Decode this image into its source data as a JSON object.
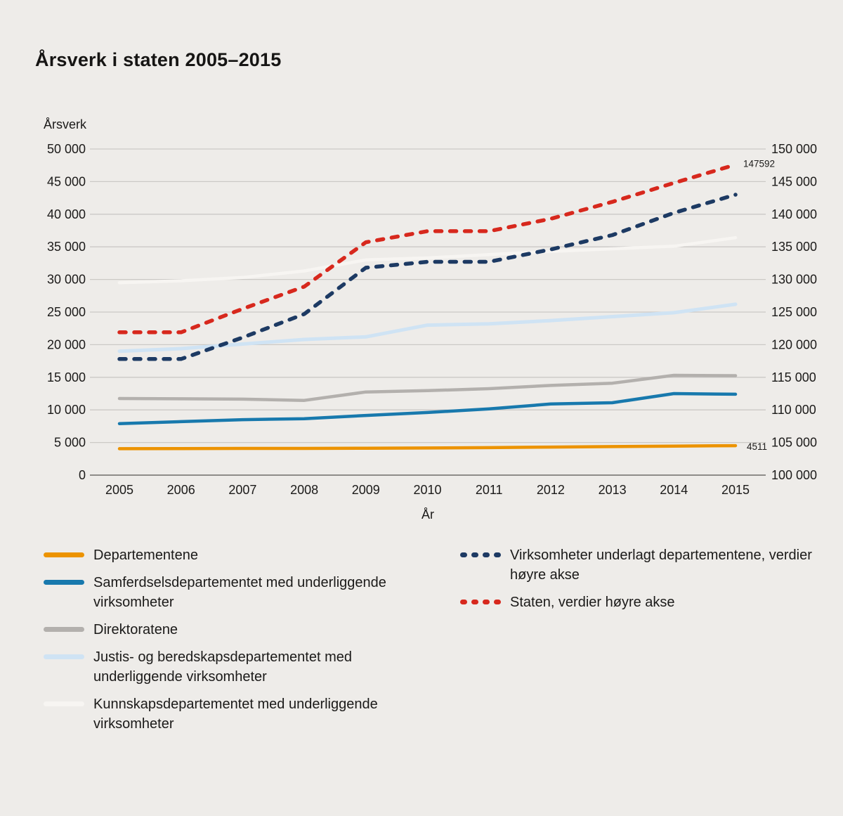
{
  "title": "Årsverk i staten 2005–2015",
  "chart_data": {
    "type": "line",
    "title": "Årsverk i staten 2005–2015",
    "xlabel": "År",
    "x": [
      2005,
      2006,
      2007,
      2008,
      2009,
      2010,
      2011,
      2012,
      2013,
      2014,
      2015
    ],
    "x_tick_labels": [
      "2005",
      "2006",
      "2007",
      "2008",
      "2009",
      "2010",
      "2011",
      "2012",
      "2013",
      "2014",
      "2015"
    ],
    "y_left": {
      "title": "Årsverk",
      "min": 0,
      "max": 50000,
      "step": 5000,
      "tick_labels": [
        "0",
        "5 000",
        "10 000",
        "15 000",
        "20 000",
        "25 000",
        "30 000",
        "35 000",
        "40 000",
        "45 000",
        "50 000"
      ]
    },
    "y_right": {
      "min": 100000,
      "max": 150000,
      "step": 5000,
      "tick_labels": [
        "100 000",
        "105 000",
        "110 000",
        "115 000",
        "120 000",
        "125 000",
        "130 000",
        "135 000",
        "140 000",
        "145 000",
        "150 000"
      ]
    },
    "grid": true,
    "legend_position": "bottom",
    "series": [
      {
        "name": "Departementene",
        "axis": "left",
        "style": "solid",
        "color": "#EC9300",
        "values": [
          4050,
          4070,
          4090,
          4100,
          4130,
          4160,
          4210,
          4300,
          4380,
          4450,
          4511
        ]
      },
      {
        "name": "Samferdselsdepartementet med underliggende virksomheter",
        "axis": "left",
        "style": "solid",
        "color": "#1879AD",
        "values": [
          7900,
          8200,
          8500,
          8650,
          9150,
          9600,
          10150,
          10900,
          11100,
          12500,
          12400
        ]
      },
      {
        "name": "Direktoratene",
        "axis": "left",
        "style": "solid",
        "color": "#B3B0AD",
        "values": [
          11750,
          11700,
          11650,
          11450,
          12750,
          12950,
          13250,
          13750,
          14100,
          15300,
          15250
        ]
      },
      {
        "name": "Justis- og beredskapsdepartementet med underliggende virksomheter",
        "axis": "left",
        "style": "solid",
        "color": "#CFE3F4",
        "values": [
          19000,
          19400,
          20100,
          20800,
          21200,
          23000,
          23200,
          23700,
          24300,
          24900,
          26200
        ]
      },
      {
        "name": "Kunnskapsdepartementet med underliggende virksomheter",
        "axis": "left",
        "style": "solid",
        "color": "#F7F5F2",
        "values": [
          29500,
          29800,
          30300,
          31300,
          33000,
          33300,
          33800,
          34300,
          34700,
          35100,
          36400
        ]
      },
      {
        "name": "Virksomheter underlagt departementene, verdier høyre akse",
        "axis": "right",
        "style": "dashed",
        "color": "#1D3A63",
        "values": [
          117800,
          117800,
          121100,
          124700,
          131800,
          132700,
          132700,
          134600,
          136800,
          140200,
          143000
        ]
      },
      {
        "name": "Staten, verdier høyre akse",
        "axis": "right",
        "style": "dashed",
        "color": "#D7281D",
        "values": [
          121900,
          121900,
          125500,
          128900,
          135700,
          137400,
          137400,
          139300,
          141900,
          144800,
          147592
        ]
      }
    ],
    "end_labels": [
      {
        "series": "Staten, verdier høyre akse",
        "text": "147592"
      },
      {
        "series": "Departementene",
        "text": "4511"
      }
    ]
  },
  "legend": {
    "left_column": [
      "Departementene",
      "Samferdselsdepartementet med underliggende virksomheter",
      "Direktoratene",
      "Justis- og beredskapsdepartementet med underliggende virksomheter",
      "Kunnskapsdepartementet med underliggende virksomheter"
    ],
    "right_column": [
      "Virksomheter underlagt departementene, verdier høyre akse",
      "Staten, verdier høyre akse"
    ]
  },
  "colors": {
    "background": "#eeece9",
    "gridline": "#cbc9c6",
    "baseline": "#8e8c89",
    "text": "#1b1a19"
  }
}
